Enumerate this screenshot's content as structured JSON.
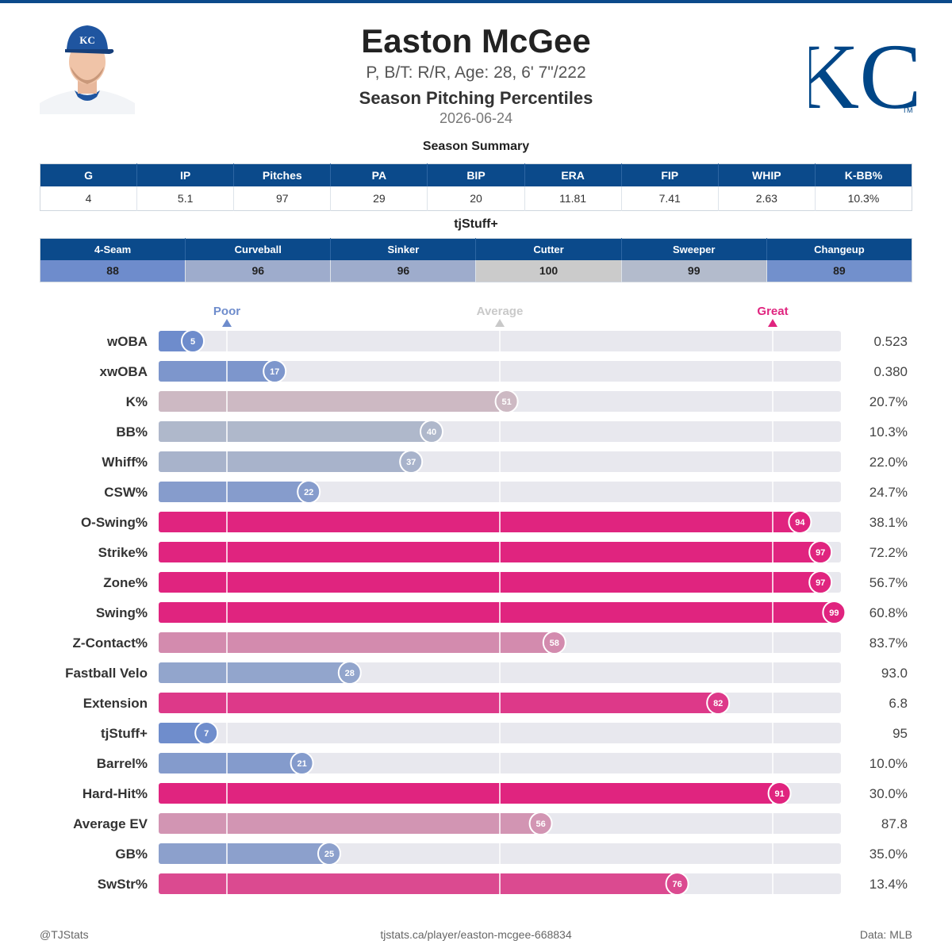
{
  "header": {
    "player_name": "Easton McGee",
    "bio": "P, B/T: R/R, Age: 28, 6' 7\"/222",
    "title": "Season Pitching Percentiles",
    "date": "2026-06-24",
    "headshot_icon": "player-headshot-icon",
    "team_logo": {
      "text": "KC",
      "trademark": "TM",
      "color": "#004687"
    }
  },
  "summary": {
    "title": "Season Summary",
    "columns": [
      "G",
      "IP",
      "Pitches",
      "PA",
      "BIP",
      "ERA",
      "FIP",
      "WHIP",
      "K-BB%"
    ],
    "values": [
      "4",
      "5.1",
      "97",
      "29",
      "20",
      "11.81",
      "7.41",
      "2.63",
      "10.3%"
    ]
  },
  "tjstuff": {
    "title": "tjStuff+",
    "columns": [
      "4-Seam",
      "Curveball",
      "Sinker",
      "Cutter",
      "Sweeper",
      "Changeup"
    ],
    "values": [
      "88",
      "96",
      "96",
      "100",
      "99",
      "89"
    ],
    "cell_colors": [
      "#6e8ccc",
      "#9eaccc",
      "#9eaccc",
      "#cbcbcb",
      "#b3bbcc",
      "#7290cc"
    ]
  },
  "chart_data": {
    "type": "bar",
    "orientation": "horizontal",
    "xlim": [
      0,
      100
    ],
    "markers": [
      {
        "label": "Poor",
        "value": 10,
        "color": "#6e8ccc"
      },
      {
        "label": "Average",
        "value": 50,
        "color": "#c9c9c9"
      },
      {
        "label": "Great",
        "value": 90,
        "color": "#e0247f"
      }
    ],
    "categories": [
      "wOBA",
      "xwOBA",
      "K%",
      "BB%",
      "Whiff%",
      "CSW%",
      "O-Swing%",
      "Strike%",
      "Zone%",
      "Swing%",
      "Z-Contact%",
      "Fastball Velo",
      "Extension",
      "tjStuff+",
      "Barrel%",
      "Hard-Hit%",
      "Average EV",
      "GB%",
      "SwStr%"
    ],
    "percentiles": [
      5,
      17,
      51,
      40,
      37,
      22,
      94,
      97,
      97,
      99,
      58,
      28,
      82,
      7,
      21,
      91,
      56,
      25,
      76
    ],
    "stat_values": [
      "0.523",
      "0.380",
      "20.7%",
      "10.3%",
      "22.0%",
      "24.7%",
      "38.1%",
      "72.2%",
      "56.7%",
      "60.8%",
      "83.7%",
      "93.0",
      "6.8",
      "95",
      "10.0%",
      "30.0%",
      "87.8",
      "35.0%",
      "13.4%"
    ],
    "colormap": {
      "low": "#6e8ccc",
      "mid": "#cbcbcb",
      "high": "#e0247f"
    }
  },
  "footer": {
    "left": "@TJStats",
    "center": "tjstats.ca/player/easton-mcgee-668834",
    "right": "Data: MLB"
  }
}
